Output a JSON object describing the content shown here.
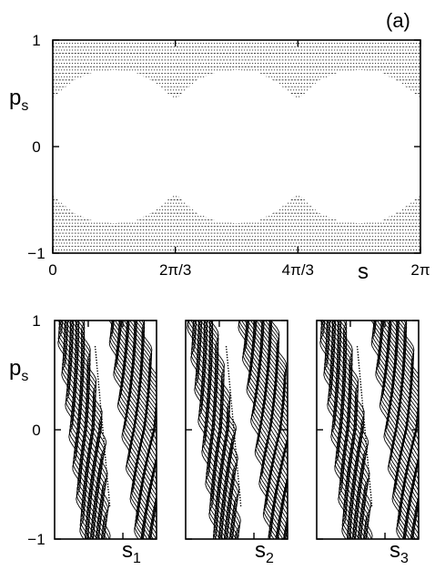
{
  "chart_data": [
    {
      "id": "top",
      "type": "scatter",
      "panel_label": "(a)",
      "xlabel": "s",
      "ylabel": "p",
      "ylabel_sub": "s",
      "xlim": [
        0,
        6.2832
      ],
      "ylim": [
        -1,
        1
      ],
      "xticks": [
        {
          "value": 0,
          "label": "0"
        },
        {
          "value": 2.0944,
          "label": "2π/3"
        },
        {
          "value": 4.1888,
          "label": "4π/3"
        },
        {
          "value": 6.2832,
          "label": "2π"
        }
      ],
      "yticks": [
        {
          "value": 1,
          "label": "1"
        },
        {
          "value": 0,
          "label": "0"
        },
        {
          "value": -1,
          "label": "−1"
        }
      ],
      "grid": false,
      "filled_region": {
        "description_free": true,
        "upper_band_boundary": {
          "s": [
            0,
            0.35,
            0.7,
            1.05,
            1.4,
            1.75,
            2.0944,
            2.45,
            2.8,
            3.14,
            3.5,
            3.84,
            4.1888,
            4.54,
            4.9,
            5.24,
            5.6,
            5.94,
            6.2832
          ],
          "p": [
            0.46,
            0.62,
            0.7,
            0.72,
            0.7,
            0.6,
            0.44,
            0.62,
            0.7,
            0.72,
            0.7,
            0.6,
            0.44,
            0.62,
            0.7,
            0.72,
            0.7,
            0.6,
            0.46
          ]
        },
        "lower_band_boundary": {
          "s": [
            0,
            0.35,
            0.7,
            1.05,
            1.4,
            1.75,
            2.0944,
            2.45,
            2.8,
            3.14,
            3.5,
            3.84,
            4.1888,
            4.54,
            4.9,
            5.24,
            5.6,
            5.94,
            6.2832
          ],
          "p": [
            -0.46,
            -0.62,
            -0.7,
            -0.72,
            -0.7,
            -0.6,
            -0.44,
            -0.62,
            -0.7,
            -0.72,
            -0.7,
            -0.6,
            -0.44,
            -0.62,
            -0.7,
            -0.72,
            -0.7,
            -0.6,
            -0.46
          ]
        }
      }
    },
    {
      "id": "bottom-1",
      "type": "scatter",
      "xlabel": "s",
      "xlabel_sub": "1",
      "ylabel": "p",
      "ylabel_sub": "s",
      "ylim": [
        -1,
        1
      ],
      "yticks": [
        {
          "value": 1,
          "label": "1"
        },
        {
          "value": 0,
          "label": "0"
        },
        {
          "value": -1,
          "label": "−1"
        }
      ],
      "grid": false
    },
    {
      "id": "bottom-2",
      "type": "scatter",
      "xlabel": "s",
      "xlabel_sub": "2",
      "ylim": [
        -1,
        1
      ],
      "grid": false
    },
    {
      "id": "bottom-3",
      "type": "scatter",
      "xlabel": "s",
      "xlabel_sub": "3",
      "ylim": [
        -1,
        1
      ],
      "grid": false
    }
  ]
}
